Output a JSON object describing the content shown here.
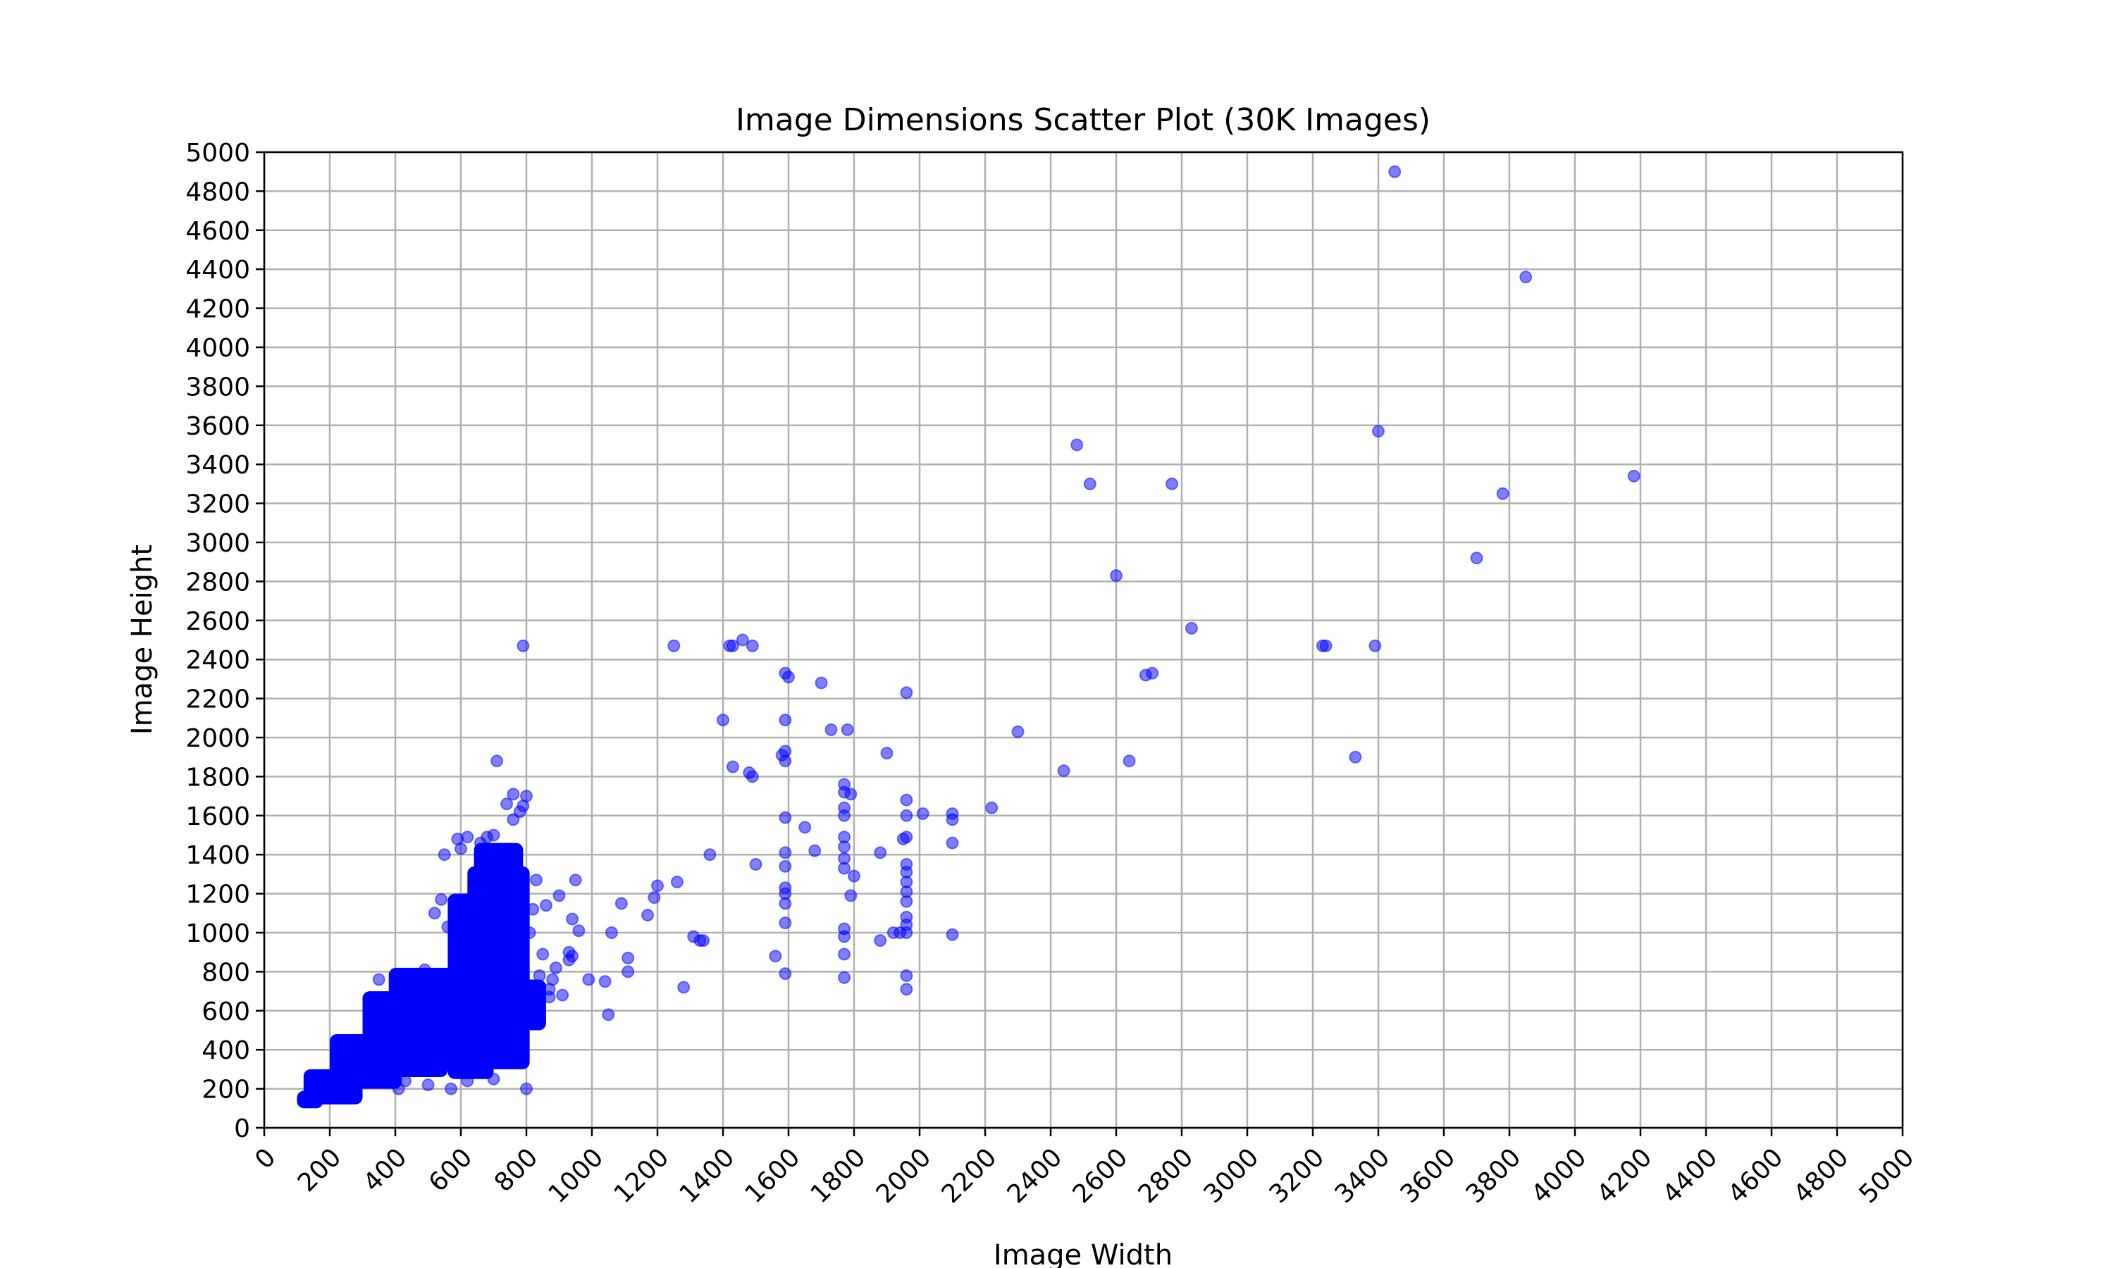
{
  "chart_data": {
    "type": "scatter",
    "title": "Image Dimensions Scatter Plot (30K Images)",
    "xlabel": "Image Width",
    "ylabel": "Image Height",
    "xlim": [
      0,
      5000
    ],
    "ylim": [
      0,
      5000
    ],
    "xticks": [
      0,
      200,
      400,
      600,
      800,
      1000,
      1200,
      1400,
      1600,
      1800,
      2000,
      2200,
      2400,
      2600,
      2800,
      3000,
      3200,
      3400,
      3600,
      3800,
      4000,
      4200,
      4400,
      4600,
      4800,
      5000
    ],
    "yticks": [
      0,
      200,
      400,
      600,
      800,
      1000,
      1200,
      1400,
      1600,
      1800,
      2000,
      2200,
      2400,
      2600,
      2800,
      3000,
      3200,
      3400,
      3600,
      3800,
      4000,
      4200,
      4400,
      4600,
      4800,
      5000
    ],
    "grid": true,
    "marker_color": "#0000ff",
    "marker_alpha": 0.5,
    "points": [
      [
        3450,
        4900
      ],
      [
        3850,
        4360
      ],
      [
        4180,
        3340
      ],
      [
        3780,
        3250
      ],
      [
        3700,
        2920
      ],
      [
        3400,
        3570
      ],
      [
        2480,
        3500
      ],
      [
        2520,
        3300
      ],
      [
        2770,
        3300
      ],
      [
        2600,
        2830
      ],
      [
        2830,
        2560
      ],
      [
        3230,
        2470
      ],
      [
        3240,
        2470
      ],
      [
        3390,
        2470
      ],
      [
        3330,
        1900
      ],
      [
        2690,
        2320
      ],
      [
        2710,
        2330
      ],
      [
        2640,
        1880
      ],
      [
        2440,
        1830
      ],
      [
        2300,
        2030
      ],
      [
        2220,
        1640
      ],
      [
        2100,
        1610
      ],
      [
        2100,
        1580
      ],
      [
        2100,
        1460
      ],
      [
        2100,
        990
      ],
      [
        2010,
        1610
      ],
      [
        1960,
        2230
      ],
      [
        1960,
        1680
      ],
      [
        1960,
        1600
      ],
      [
        1960,
        1490
      ],
      [
        1960,
        1350
      ],
      [
        1960,
        1310
      ],
      [
        1960,
        1260
      ],
      [
        1960,
        1210
      ],
      [
        1960,
        1160
      ],
      [
        1960,
        1080
      ],
      [
        1960,
        1040
      ],
      [
        1960,
        1000
      ],
      [
        1960,
        780
      ],
      [
        1960,
        710
      ],
      [
        1950,
        1480
      ],
      [
        1940,
        1000
      ],
      [
        1920,
        1000
      ],
      [
        1900,
        1920
      ],
      [
        1880,
        1410
      ],
      [
        1880,
        960
      ],
      [
        1780,
        2040
      ],
      [
        1770,
        1760
      ],
      [
        1770,
        1720
      ],
      [
        1770,
        1640
      ],
      [
        1770,
        1600
      ],
      [
        1770,
        1490
      ],
      [
        1770,
        1440
      ],
      [
        1770,
        1380
      ],
      [
        1770,
        1330
      ],
      [
        1770,
        1020
      ],
      [
        1770,
        980
      ],
      [
        1770,
        890
      ],
      [
        1770,
        770
      ],
      [
        1790,
        1710
      ],
      [
        1800,
        1290
      ],
      [
        1790,
        1190
      ],
      [
        1730,
        2040
      ],
      [
        1700,
        2280
      ],
      [
        1680,
        1420
      ],
      [
        1650,
        1540
      ],
      [
        1590,
        2330
      ],
      [
        1600,
        2310
      ],
      [
        1590,
        2090
      ],
      [
        1590,
        1930
      ],
      [
        1580,
        1910
      ],
      [
        1590,
        1880
      ],
      [
        1590,
        1590
      ],
      [
        1590,
        1410
      ],
      [
        1590,
        1340
      ],
      [
        1590,
        1230
      ],
      [
        1590,
        1200
      ],
      [
        1590,
        1150
      ],
      [
        1590,
        1050
      ],
      [
        1590,
        790
      ],
      [
        1560,
        880
      ],
      [
        1500,
        1350
      ],
      [
        1490,
        1800
      ],
      [
        1480,
        1820
      ],
      [
        1490,
        2470
      ],
      [
        1460,
        2500
      ],
      [
        1430,
        2470
      ],
      [
        1420,
        2470
      ],
      [
        1430,
        1850
      ],
      [
        1400,
        2090
      ],
      [
        1360,
        1400
      ],
      [
        1340,
        960
      ],
      [
        1330,
        960
      ],
      [
        1310,
        980
      ],
      [
        1280,
        720
      ],
      [
        1250,
        2470
      ],
      [
        1260,
        1260
      ],
      [
        1200,
        1240
      ],
      [
        1190,
        1180
      ],
      [
        1170,
        1090
      ],
      [
        1110,
        870
      ],
      [
        1110,
        800
      ],
      [
        1090,
        1150
      ],
      [
        1060,
        1000
      ],
      [
        1050,
        580
      ],
      [
        1040,
        750
      ],
      [
        990,
        760
      ],
      [
        960,
        1010
      ],
      [
        950,
        1270
      ],
      [
        940,
        1070
      ],
      [
        930,
        900
      ],
      [
        940,
        880
      ],
      [
        930,
        860
      ],
      [
        910,
        680
      ],
      [
        900,
        1190
      ],
      [
        890,
        820
      ],
      [
        880,
        760
      ],
      [
        870,
        710
      ],
      [
        870,
        670
      ],
      [
        860,
        1140
      ],
      [
        850,
        890
      ],
      [
        840,
        780
      ],
      [
        830,
        1270
      ],
      [
        820,
        1120
      ],
      [
        810,
        1000
      ],
      [
        790,
        2470
      ],
      [
        800,
        1700
      ],
      [
        790,
        1650
      ],
      [
        780,
        1620
      ],
      [
        760,
        1710
      ],
      [
        760,
        1580
      ],
      [
        740,
        1660
      ],
      [
        710,
        1880
      ],
      [
        700,
        1500
      ],
      [
        680,
        1490
      ],
      [
        660,
        1460
      ],
      [
        620,
        1490
      ],
      [
        600,
        1430
      ],
      [
        590,
        1480
      ],
      [
        550,
        1400
      ],
      [
        540,
        1170
      ],
      [
        520,
        1100
      ],
      [
        560,
        1030
      ],
      [
        490,
        810
      ],
      [
        450,
        760
      ],
      [
        400,
        760
      ],
      [
        350,
        760
      ],
      [
        320,
        650
      ],
      [
        250,
        440
      ],
      [
        480,
        320
      ],
      [
        430,
        240
      ],
      [
        570,
        200
      ],
      [
        800,
        200
      ],
      [
        410,
        200
      ],
      [
        500,
        220
      ],
      [
        620,
        240
      ],
      [
        640,
        300
      ],
      [
        700,
        250
      ]
    ],
    "regions": [
      {
        "x_min": 100,
        "x_max": 180,
        "y_min": 100,
        "y_max": 190
      },
      {
        "x_min": 120,
        "x_max": 300,
        "y_min": 120,
        "y_max": 300
      },
      {
        "x_min": 200,
        "x_max": 420,
        "y_min": 200,
        "y_max": 480
      },
      {
        "x_min": 300,
        "x_max": 560,
        "y_min": 260,
        "y_max": 700
      },
      {
        "x_min": 380,
        "x_max": 620,
        "y_min": 300,
        "y_max": 820
      },
      {
        "x_min": 560,
        "x_max": 700,
        "y_min": 250,
        "y_max": 1200
      },
      {
        "x_min": 620,
        "x_max": 810,
        "y_min": 300,
        "y_max": 1340
      },
      {
        "x_min": 640,
        "x_max": 790,
        "y_min": 1200,
        "y_max": 1460
      },
      {
        "x_min": 780,
        "x_max": 860,
        "y_min": 500,
        "y_max": 760
      }
    ]
  }
}
